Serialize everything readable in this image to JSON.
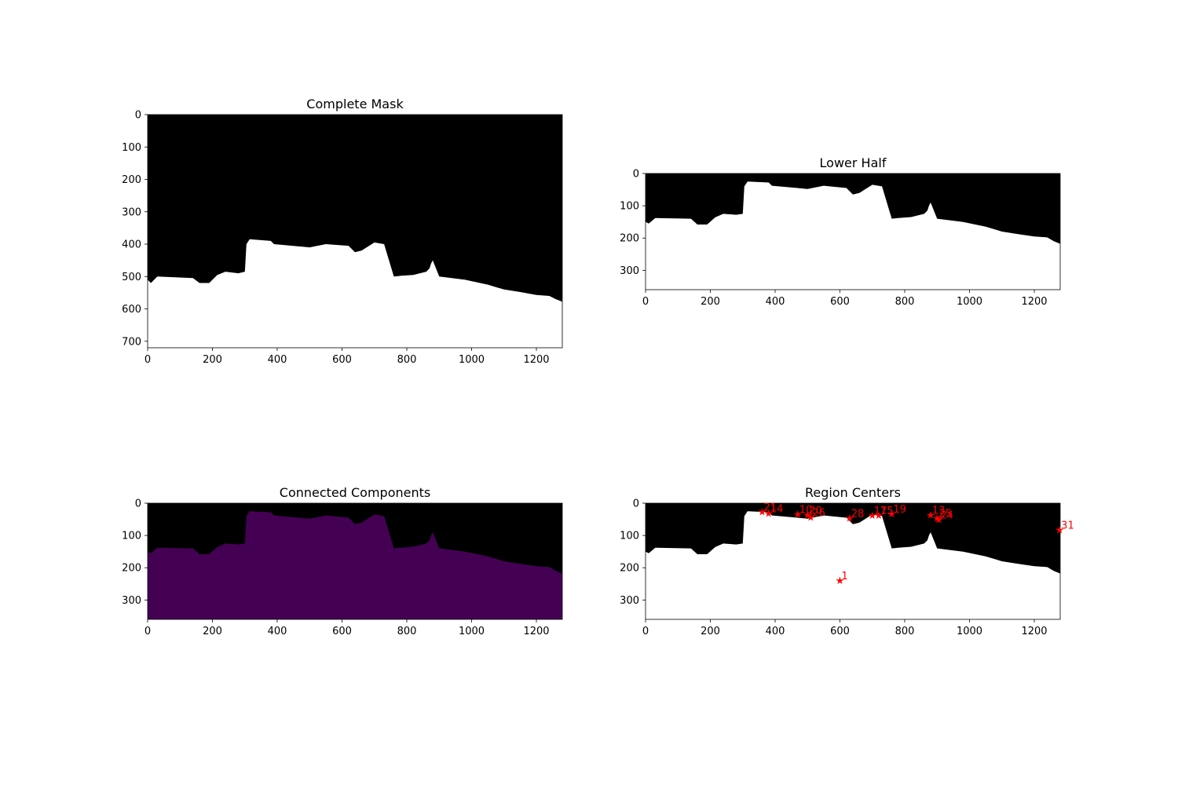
{
  "figure": {
    "background": "#ffffff"
  },
  "colors": {
    "mask_black": "#000000",
    "mask_white": "#ffffff",
    "component_purple": "#440154",
    "marker_red": "#ff0000"
  },
  "chart_data": [
    {
      "type": "heatmap",
      "title": "Complete Mask",
      "xlabel": "",
      "ylabel": "",
      "xlim": [
        0,
        1280
      ],
      "ylim": [
        720,
        0
      ],
      "x_ticks": [
        0,
        200,
        400,
        600,
        800,
        1000,
        1200
      ],
      "y_ticks": [
        0,
        100,
        200,
        300,
        400,
        500,
        600,
        700
      ],
      "boundary": [
        [
          0,
          520
        ],
        [
          0,
          510
        ],
        [
          10,
          520
        ],
        [
          30,
          500
        ],
        [
          140,
          505
        ],
        [
          160,
          520
        ],
        [
          190,
          520
        ],
        [
          215,
          495
        ],
        [
          240,
          485
        ],
        [
          280,
          490
        ],
        [
          300,
          485
        ],
        [
          305,
          400
        ],
        [
          315,
          385
        ],
        [
          380,
          390
        ],
        [
          390,
          400
        ],
        [
          500,
          410
        ],
        [
          550,
          400
        ],
        [
          620,
          405
        ],
        [
          640,
          425
        ],
        [
          660,
          420
        ],
        [
          700,
          395
        ],
        [
          730,
          400
        ],
        [
          760,
          500
        ],
        [
          780,
          498
        ],
        [
          820,
          495
        ],
        [
          860,
          485
        ],
        [
          870,
          475
        ],
        [
          875,
          460
        ],
        [
          880,
          450
        ],
        [
          900,
          500
        ],
        [
          980,
          510
        ],
        [
          1050,
          525
        ],
        [
          1100,
          540
        ],
        [
          1150,
          548
        ],
        [
          1200,
          557
        ],
        [
          1240,
          560
        ],
        [
          1260,
          570
        ],
        [
          1280,
          578
        ]
      ],
      "fill_below": "white",
      "fill_above": "black"
    },
    {
      "type": "heatmap",
      "title": "Lower Half",
      "xlabel": "",
      "ylabel": "",
      "xlim": [
        0,
        1280
      ],
      "ylim": [
        360,
        0
      ],
      "x_ticks": [
        0,
        200,
        400,
        600,
        800,
        1000,
        1200
      ],
      "y_ticks": [
        0,
        100,
        200,
        300
      ],
      "boundary": [
        [
          0,
          160
        ],
        [
          0,
          150
        ],
        [
          10,
          155
        ],
        [
          30,
          138
        ],
        [
          140,
          140
        ],
        [
          160,
          158
        ],
        [
          190,
          158
        ],
        [
          215,
          136
        ],
        [
          240,
          125
        ],
        [
          280,
          128
        ],
        [
          300,
          125
        ],
        [
          305,
          40
        ],
        [
          315,
          25
        ],
        [
          380,
          28
        ],
        [
          390,
          38
        ],
        [
          500,
          48
        ],
        [
          550,
          38
        ],
        [
          620,
          45
        ],
        [
          640,
          65
        ],
        [
          660,
          60
        ],
        [
          700,
          35
        ],
        [
          730,
          40
        ],
        [
          760,
          140
        ],
        [
          780,
          138
        ],
        [
          820,
          135
        ],
        [
          860,
          125
        ],
        [
          870,
          115
        ],
        [
          875,
          100
        ],
        [
          880,
          90
        ],
        [
          900,
          140
        ],
        [
          980,
          150
        ],
        [
          1050,
          165
        ],
        [
          1100,
          180
        ],
        [
          1150,
          188
        ],
        [
          1200,
          195
        ],
        [
          1240,
          198
        ],
        [
          1260,
          210
        ],
        [
          1280,
          218
        ]
      ],
      "fill_below": "white",
      "fill_above": "black"
    },
    {
      "type": "heatmap",
      "title": "Connected Components",
      "xlabel": "",
      "ylabel": "",
      "xlim": [
        0,
        1280
      ],
      "ylim": [
        360,
        0
      ],
      "x_ticks": [
        0,
        200,
        400,
        600,
        800,
        1000,
        1200
      ],
      "y_ticks": [
        0,
        100,
        200,
        300
      ],
      "boundary": [
        [
          0,
          160
        ],
        [
          0,
          150
        ],
        [
          10,
          155
        ],
        [
          30,
          138
        ],
        [
          140,
          140
        ],
        [
          160,
          158
        ],
        [
          190,
          158
        ],
        [
          215,
          136
        ],
        [
          240,
          125
        ],
        [
          280,
          128
        ],
        [
          300,
          125
        ],
        [
          305,
          40
        ],
        [
          315,
          25
        ],
        [
          380,
          28
        ],
        [
          390,
          38
        ],
        [
          500,
          48
        ],
        [
          550,
          38
        ],
        [
          620,
          45
        ],
        [
          640,
          65
        ],
        [
          660,
          60
        ],
        [
          700,
          35
        ],
        [
          730,
          40
        ],
        [
          760,
          140
        ],
        [
          780,
          138
        ],
        [
          820,
          135
        ],
        [
          860,
          125
        ],
        [
          870,
          115
        ],
        [
          875,
          100
        ],
        [
          880,
          90
        ],
        [
          900,
          140
        ],
        [
          980,
          150
        ],
        [
          1050,
          165
        ],
        [
          1100,
          180
        ],
        [
          1150,
          188
        ],
        [
          1200,
          195
        ],
        [
          1240,
          198
        ],
        [
          1260,
          210
        ],
        [
          1280,
          218
        ]
      ],
      "fill_below": "purple",
      "fill_above": "black"
    },
    {
      "type": "scatter",
      "title": "Region Centers",
      "xlabel": "",
      "ylabel": "",
      "xlim": [
        0,
        1280
      ],
      "ylim": [
        360,
        0
      ],
      "x_ticks": [
        0,
        200,
        400,
        600,
        800,
        1000,
        1200
      ],
      "y_ticks": [
        0,
        100,
        200,
        300
      ],
      "boundary": [
        [
          0,
          160
        ],
        [
          0,
          150
        ],
        [
          10,
          155
        ],
        [
          30,
          138
        ],
        [
          140,
          140
        ],
        [
          160,
          158
        ],
        [
          190,
          158
        ],
        [
          215,
          136
        ],
        [
          240,
          125
        ],
        [
          280,
          128
        ],
        [
          300,
          125
        ],
        [
          305,
          40
        ],
        [
          315,
          25
        ],
        [
          380,
          28
        ],
        [
          390,
          38
        ],
        [
          500,
          48
        ],
        [
          550,
          38
        ],
        [
          620,
          45
        ],
        [
          640,
          65
        ],
        [
          660,
          60
        ],
        [
          700,
          35
        ],
        [
          730,
          40
        ],
        [
          760,
          140
        ],
        [
          780,
          138
        ],
        [
          820,
          135
        ],
        [
          860,
          125
        ],
        [
          870,
          115
        ],
        [
          875,
          100
        ],
        [
          880,
          90
        ],
        [
          900,
          140
        ],
        [
          980,
          150
        ],
        [
          1050,
          165
        ],
        [
          1100,
          180
        ],
        [
          1150,
          188
        ],
        [
          1200,
          195
        ],
        [
          1240,
          198
        ],
        [
          1260,
          210
        ],
        [
          1280,
          218
        ]
      ],
      "fill_below": "white",
      "fill_above": "black",
      "points": [
        {
          "label": "1",
          "x": 600,
          "y": 238
        },
        {
          "label": "31",
          "x": 1278,
          "y": 82
        },
        {
          "label": "14",
          "x": 380,
          "y": 30
        },
        {
          "label": "21",
          "x": 360,
          "y": 25
        },
        {
          "label": "10",
          "x": 470,
          "y": 33
        },
        {
          "label": "20",
          "x": 500,
          "y": 35
        },
        {
          "label": "26",
          "x": 510,
          "y": 42
        },
        {
          "label": "28",
          "x": 630,
          "y": 45
        },
        {
          "label": "17",
          "x": 700,
          "y": 37
        },
        {
          "label": "15",
          "x": 720,
          "y": 37
        },
        {
          "label": "19",
          "x": 760,
          "y": 32
        },
        {
          "label": "13",
          "x": 880,
          "y": 35
        },
        {
          "label": "25",
          "x": 900,
          "y": 45
        },
        {
          "label": "24",
          "x": 905,
          "y": 50
        }
      ]
    }
  ]
}
